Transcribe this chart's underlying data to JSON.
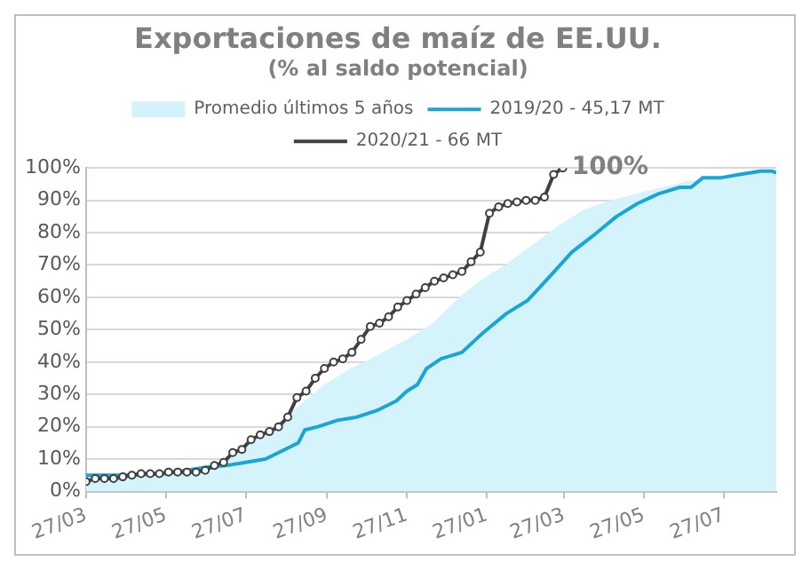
{
  "chart_data": {
    "type": "line",
    "title": "Exportaciones de maíz de EE.UU.",
    "subtitle": "(% al saldo potencial)",
    "xlim": [
      "2020-03-27",
      "2021-09-05"
    ],
    "xticks": [
      {
        "value": "2020-03-27",
        "label": "27/03"
      },
      {
        "value": "2020-05-27",
        "label": "27/05"
      },
      {
        "value": "2020-07-27",
        "label": "27/07"
      },
      {
        "value": "2020-09-27",
        "label": "27/09"
      },
      {
        "value": "2020-11-27",
        "label": "27/11"
      },
      {
        "value": "2021-01-27",
        "label": "27/01"
      },
      {
        "value": "2021-03-27",
        "label": "27/03"
      },
      {
        "value": "2021-05-27",
        "label": "27/05"
      },
      {
        "value": "2021-07-27",
        "label": "27/07"
      }
    ],
    "ylim": [
      0,
      100
    ],
    "yticks": [
      {
        "value": 0,
        "label": "0%"
      },
      {
        "value": 10,
        "label": "10%"
      },
      {
        "value": 20,
        "label": "20%"
      },
      {
        "value": 30,
        "label": "30%"
      },
      {
        "value": 40,
        "label": "40%"
      },
      {
        "value": 50,
        "label": "50%"
      },
      {
        "value": 60,
        "label": "60%"
      },
      {
        "value": 70,
        "label": "70%"
      },
      {
        "value": 80,
        "label": "80%"
      },
      {
        "value": 90,
        "label": "90%"
      },
      {
        "value": 100,
        "label": "100%"
      }
    ],
    "grid": "y",
    "legend": "top",
    "annotations": [
      {
        "text": "100%",
        "x": "2021-03-26",
        "y": 100
      }
    ],
    "series": [
      {
        "name": "Promedio últimos 5 años",
        "type": "area",
        "color": "#d4f3fb",
        "x": [
          "2020-03-27",
          "2020-05-27",
          "2020-06-27",
          "2020-07-12",
          "2020-07-27",
          "2020-08-11",
          "2020-08-26",
          "2020-09-10",
          "2020-09-25",
          "2020-10-15",
          "2020-11-04",
          "2020-11-27",
          "2020-12-17",
          "2021-01-06",
          "2021-01-21",
          "2021-02-10",
          "2021-03-02",
          "2021-03-22",
          "2021-04-11",
          "2021-05-01",
          "2021-05-21",
          "2021-06-10",
          "2021-06-30",
          "2021-07-20",
          "2021-08-09",
          "2021-09-05"
        ],
        "values": [
          5,
          6,
          8,
          10,
          14,
          18,
          23,
          28,
          33,
          38,
          42,
          47,
          52,
          60,
          65,
          70,
          76,
          82,
          87,
          90,
          92,
          94,
          96,
          97,
          98,
          99
        ]
      },
      {
        "name": "2019/20 - 45,17 MT",
        "color": "#1aa6d4",
        "marker": "none",
        "x": [
          "2020-03-27",
          "2020-04-27",
          "2020-05-27",
          "2020-06-27",
          "2020-07-12",
          "2020-07-27",
          "2020-08-11",
          "2020-08-21",
          "2020-08-31",
          "2020-09-05",
          "2020-09-10",
          "2020-09-20",
          "2020-10-05",
          "2020-10-20",
          "2020-11-04",
          "2020-11-19",
          "2020-11-27",
          "2020-12-05",
          "2020-12-12",
          "2020-12-23",
          "2021-01-08",
          "2021-01-24",
          "2021-02-11",
          "2021-02-27",
          "2021-03-15",
          "2021-04-02",
          "2021-04-18",
          "2021-05-06",
          "2021-05-22",
          "2021-06-07",
          "2021-06-23",
          "2021-07-02",
          "2021-07-11",
          "2021-07-25",
          "2021-08-08",
          "2021-08-24",
          "2021-09-02",
          "2021-09-05"
        ],
        "values": [
          5,
          5,
          5.5,
          7.5,
          8,
          9,
          10,
          12,
          14,
          15,
          19,
          20,
          22,
          23,
          25,
          28,
          31,
          33,
          38,
          41,
          43,
          49,
          55,
          59,
          66,
          74,
          79,
          85,
          89,
          92,
          94,
          94,
          97,
          97,
          98,
          99,
          99,
          98.5
        ]
      },
      {
        "name": "2020/21 - 66 MT",
        "color": "#404040",
        "marker": "circle",
        "x": [
          "2020-03-27",
          "2020-04-03",
          "2020-04-10",
          "2020-04-17",
          "2020-04-24",
          "2020-05-01",
          "2020-05-08",
          "2020-05-15",
          "2020-05-22",
          "2020-05-29",
          "2020-06-05",
          "2020-06-12",
          "2020-06-19",
          "2020-06-26",
          "2020-07-03",
          "2020-07-10",
          "2020-07-17",
          "2020-07-24",
          "2020-07-31",
          "2020-08-07",
          "2020-08-14",
          "2020-08-21",
          "2020-08-28",
          "2020-09-04",
          "2020-09-11",
          "2020-09-18",
          "2020-09-25",
          "2020-10-02",
          "2020-10-09",
          "2020-10-16",
          "2020-10-23",
          "2020-10-30",
          "2020-11-06",
          "2020-11-13",
          "2020-11-20",
          "2020-11-27",
          "2020-12-04",
          "2020-12-11",
          "2020-12-18",
          "2020-12-25",
          "2021-01-01",
          "2021-01-08",
          "2021-01-15",
          "2021-01-22",
          "2021-01-29",
          "2021-02-05",
          "2021-02-12",
          "2021-02-19",
          "2021-02-26",
          "2021-03-05",
          "2021-03-12",
          "2021-03-19",
          "2021-03-26"
        ],
        "values": [
          3,
          4,
          4,
          4,
          4.5,
          5,
          5.5,
          5.5,
          5.5,
          6,
          6,
          6,
          6,
          6.5,
          8,
          9,
          12,
          13,
          16,
          17.5,
          18.5,
          20,
          23,
          29,
          31,
          35,
          38,
          40,
          41,
          43,
          47,
          51,
          52,
          54,
          57,
          59,
          61,
          63,
          65,
          66,
          67,
          68,
          71,
          74,
          86,
          88,
          89,
          89.5,
          90,
          90,
          91,
          98,
          100
        ]
      }
    ]
  }
}
